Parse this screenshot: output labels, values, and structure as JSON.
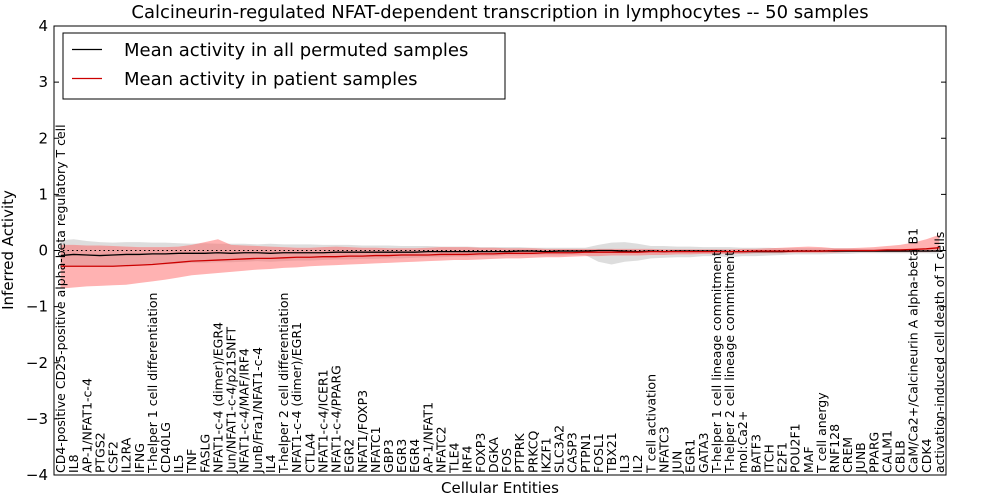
{
  "chart_data": {
    "type": "line",
    "title": "Calcineurin-regulated NFAT-dependent transcription in lymphocytes -- 50 samples",
    "xlabel": "Cellular Entities",
    "ylabel": "Inferred Activity",
    "ylim": [
      -4,
      4
    ],
    "yticks": [
      -4,
      -3,
      -2,
      -1,
      0,
      1,
      2,
      3,
      4
    ],
    "ytick_labels": [
      "−4",
      "−3",
      "−2",
      "−1",
      "0",
      "1",
      "2",
      "3",
      "4"
    ],
    "grid": false,
    "legend_position": "top-left",
    "categories": [
      "CD4-positive CD25-positive alpha-beta regulatory T cell",
      "IL8",
      "AP-1/NFAT1-c-4",
      "PTGS2",
      "CSF2",
      "IL2RA",
      "IFNG",
      "T-helper 1 cell differentiation",
      "CD40LG",
      "IL5",
      "TNF",
      "FASLG",
      "NFAT1-c-4 (dimer)/EGR4",
      "Jun/NFAT1-c-4/p21SNFT",
      "NFAT1-c-4/MAF/IRF4",
      "JunB/Fra1/NFAT1-c-4",
      "IL4",
      "T-helper 2 cell differentiation",
      "NFAT1-c-4 (dimer)/EGR1",
      "CTLA4",
      "NFAT1-c-4/ICER1",
      "NFAT1-c-4/PPARG",
      "EGR2",
      "NFAT1/FOXP3",
      "NFATC1",
      "GBP3",
      "EGR3",
      "EGR4",
      "AP-1/NFAT1",
      "NFATC2",
      "TLE4",
      "IRF4",
      "FOXP3",
      "DGKA",
      "FOS",
      "PTPRK",
      "PRKCQ",
      "IKZF1",
      "SLC3A2",
      "CASP3",
      "PTPN1",
      "FOSL1",
      "TBX21",
      "IL3",
      "IL2",
      "T cell activation",
      "NFATC3",
      "JUN",
      "EGR1",
      "GATA3",
      "T-helper 1 cell lineage commitment",
      "T-helper 2 cell lineage commitment",
      "mol:Ca2+",
      "BATF3",
      "ITCH",
      "E2F1",
      "POU2F1",
      "MAF",
      "T cell anergy",
      "RNF128",
      "CREM",
      "JUNB",
      "PPARG",
      "CALM1",
      "CBLB",
      "CaM/Ca2+/Calcineurin A alpha-beta B1",
      "CDK4",
      "activation-induced cell death of T cells"
    ],
    "series": [
      {
        "name": "Mean activity in all permuted samples",
        "color": "#000000",
        "band_color": "#bbbbbb",
        "values": [
          -0.09,
          -0.07,
          -0.08,
          -0.09,
          -0.08,
          -0.07,
          -0.07,
          -0.06,
          -0.06,
          -0.05,
          -0.05,
          -0.05,
          -0.04,
          -0.05,
          -0.04,
          -0.04,
          -0.05,
          -0.04,
          -0.04,
          -0.04,
          -0.04,
          -0.03,
          -0.03,
          -0.03,
          -0.03,
          -0.03,
          -0.03,
          -0.03,
          -0.02,
          -0.02,
          -0.02,
          -0.02,
          -0.02,
          -0.02,
          -0.02,
          -0.01,
          -0.01,
          -0.02,
          -0.01,
          -0.01,
          -0.01,
          0.0,
          0.0,
          -0.01,
          -0.02,
          -0.01,
          -0.02,
          -0.01,
          -0.01,
          -0.01,
          -0.01,
          -0.02,
          -0.02,
          -0.02,
          -0.02,
          -0.02,
          -0.01,
          -0.01,
          -0.01,
          -0.01,
          -0.01,
          -0.01,
          -0.01,
          -0.01,
          -0.01,
          -0.01,
          -0.01,
          -0.01
        ],
        "band_lower": [
          -0.3,
          -0.28,
          -0.28,
          -0.29,
          -0.28,
          -0.27,
          -0.27,
          -0.25,
          -0.25,
          -0.23,
          -0.22,
          -0.22,
          -0.21,
          -0.21,
          -0.2,
          -0.19,
          -0.2,
          -0.19,
          -0.18,
          -0.18,
          -0.17,
          -0.16,
          -0.16,
          -0.15,
          -0.15,
          -0.14,
          -0.14,
          -0.13,
          -0.12,
          -0.12,
          -0.11,
          -0.11,
          -0.1,
          -0.1,
          -0.09,
          -0.09,
          -0.08,
          -0.09,
          -0.09,
          -0.08,
          -0.08,
          -0.2,
          -0.25,
          -0.2,
          -0.18,
          -0.14,
          -0.13,
          -0.12,
          -0.12,
          -0.1,
          -0.1,
          -0.12,
          -0.1,
          -0.1,
          -0.09,
          -0.08,
          -0.07,
          -0.07,
          -0.07,
          -0.06,
          -0.06,
          -0.05,
          -0.05,
          -0.05,
          -0.05,
          -0.05,
          -0.05,
          -0.06
        ],
        "band_upper": [
          0.18,
          0.2,
          0.17,
          0.15,
          0.14,
          0.15,
          0.15,
          0.14,
          0.14,
          0.13,
          0.12,
          0.13,
          0.12,
          0.12,
          0.12,
          0.11,
          0.12,
          0.11,
          0.11,
          0.11,
          0.1,
          0.1,
          0.1,
          0.09,
          0.09,
          0.09,
          0.08,
          0.08,
          0.08,
          0.07,
          0.07,
          0.07,
          0.06,
          0.06,
          0.06,
          0.06,
          0.05,
          0.05,
          0.05,
          0.05,
          0.05,
          0.1,
          0.14,
          0.15,
          0.12,
          0.08,
          0.08,
          0.07,
          0.07,
          0.06,
          0.06,
          0.06,
          0.05,
          0.05,
          0.05,
          0.04,
          0.04,
          0.04,
          0.04,
          0.04,
          0.04,
          0.03,
          0.03,
          0.03,
          0.03,
          0.03,
          0.03,
          0.04
        ]
      },
      {
        "name": "Mean activity in patient samples",
        "color": "#cc0000",
        "band_color": "#ff6666",
        "values": [
          -0.28,
          -0.28,
          -0.28,
          -0.28,
          -0.28,
          -0.27,
          -0.26,
          -0.25,
          -0.23,
          -0.21,
          -0.19,
          -0.18,
          -0.17,
          -0.16,
          -0.15,
          -0.14,
          -0.14,
          -0.13,
          -0.12,
          -0.12,
          -0.11,
          -0.11,
          -0.1,
          -0.1,
          -0.09,
          -0.09,
          -0.08,
          -0.08,
          -0.08,
          -0.07,
          -0.07,
          -0.07,
          -0.06,
          -0.06,
          -0.05,
          -0.05,
          -0.05,
          -0.04,
          -0.04,
          -0.04,
          -0.03,
          -0.03,
          -0.03,
          -0.03,
          -0.03,
          -0.02,
          -0.02,
          -0.02,
          -0.02,
          -0.02,
          -0.02,
          -0.02,
          -0.02,
          -0.01,
          -0.01,
          -0.01,
          -0.01,
          -0.01,
          -0.01,
          0.0,
          0.0,
          0.0,
          0.0,
          0.01,
          0.01,
          0.02,
          0.03,
          0.05
        ],
        "band_lower": [
          -0.68,
          -0.66,
          -0.64,
          -0.63,
          -0.62,
          -0.61,
          -0.58,
          -0.55,
          -0.52,
          -0.48,
          -0.44,
          -0.42,
          -0.4,
          -0.38,
          -0.36,
          -0.34,
          -0.33,
          -0.31,
          -0.3,
          -0.28,
          -0.27,
          -0.26,
          -0.25,
          -0.24,
          -0.23,
          -0.22,
          -0.21,
          -0.2,
          -0.19,
          -0.18,
          -0.17,
          -0.17,
          -0.16,
          -0.15,
          -0.14,
          -0.14,
          -0.13,
          -0.12,
          -0.12,
          -0.11,
          -0.1,
          -0.1,
          -0.09,
          -0.09,
          -0.09,
          -0.08,
          -0.08,
          -0.07,
          -0.07,
          -0.06,
          -0.06,
          -0.06,
          -0.06,
          -0.05,
          -0.05,
          -0.05,
          -0.04,
          -0.04,
          -0.04,
          -0.04,
          -0.03,
          -0.03,
          -0.03,
          -0.03,
          -0.03,
          -0.03,
          -0.03,
          -0.02
        ],
        "band_upper": [
          0.1,
          0.1,
          0.09,
          0.09,
          0.08,
          0.07,
          0.06,
          0.06,
          0.06,
          0.07,
          0.1,
          0.15,
          0.2,
          0.1,
          0.09,
          0.08,
          0.07,
          0.06,
          0.05,
          0.05,
          0.06,
          0.07,
          0.06,
          0.05,
          0.05,
          0.04,
          0.04,
          0.04,
          0.05,
          0.06,
          0.06,
          0.06,
          0.05,
          0.05,
          0.04,
          0.04,
          0.04,
          0.03,
          0.03,
          0.03,
          0.03,
          0.03,
          0.03,
          0.03,
          0.03,
          0.03,
          0.02,
          0.02,
          0.02,
          0.02,
          0.02,
          0.02,
          0.03,
          0.03,
          0.04,
          0.05,
          0.06,
          0.07,
          0.06,
          0.04,
          0.04,
          0.05,
          0.06,
          0.08,
          0.1,
          0.14,
          0.2,
          0.28
        ]
      }
    ],
    "reference_line": {
      "y": 0,
      "style": "dotted",
      "color": "#000000"
    }
  }
}
